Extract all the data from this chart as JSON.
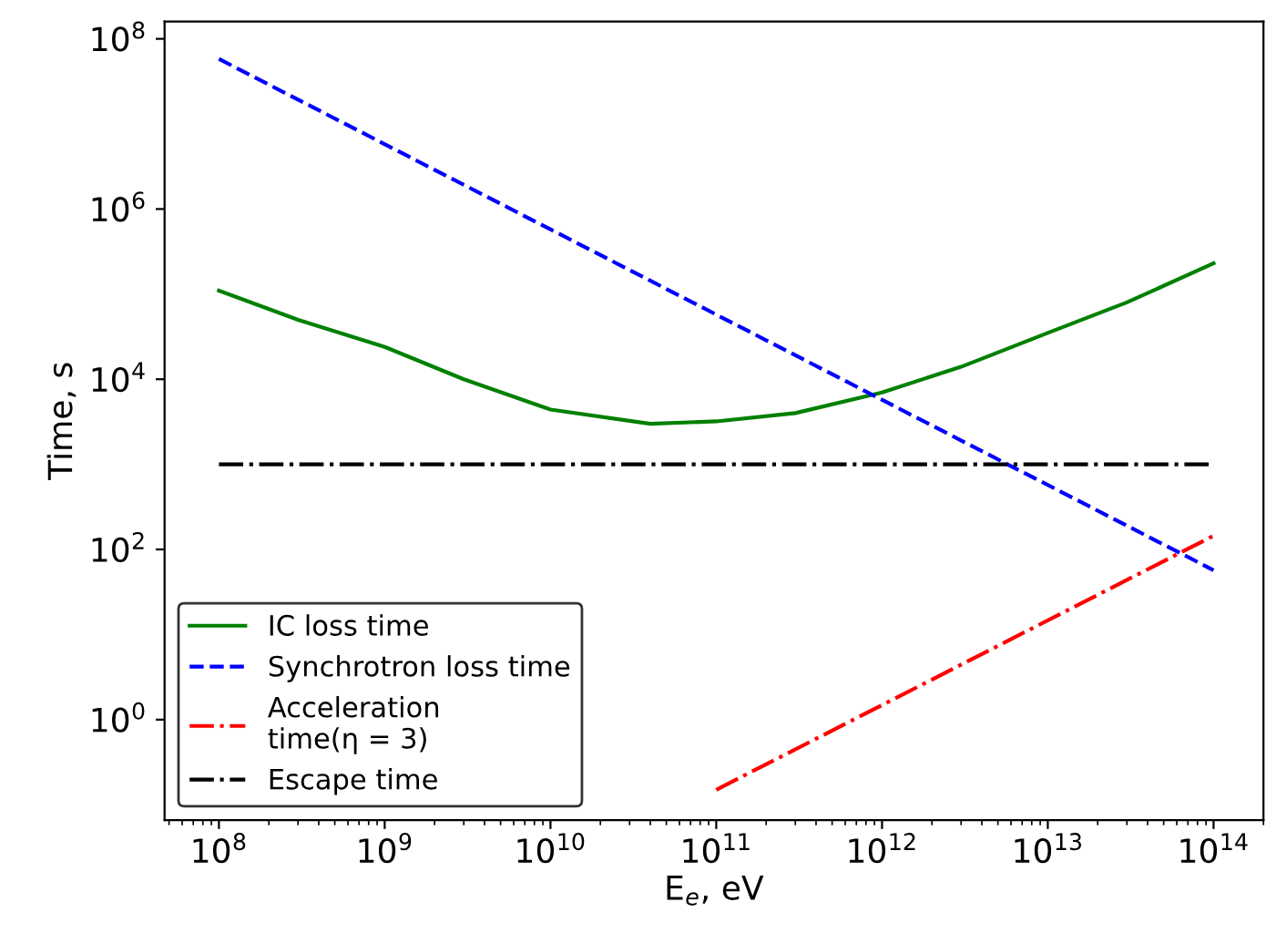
{
  "chart_data": {
    "type": "line",
    "xlabel": "E$_{e}$, eV",
    "ylabel": "Time, s",
    "log": "xy",
    "grid": false,
    "legend": "bottom left",
    "xlim": [
      47000000.0,
      200000000000000.0
    ],
    "ylim": [
      0.066,
      160000000.0
    ],
    "xticks": [
      {
        "value": 100000000.0,
        "label": "10$^{8}$"
      },
      {
        "value": 1000000000.0,
        "label": "10$^{9}$"
      },
      {
        "value": 10000000000.0,
        "label": "10$^{10}$"
      },
      {
        "value": 100000000000.0,
        "label": "10$^{11}$"
      },
      {
        "value": 1000000000000.0,
        "label": "10$^{12}$"
      },
      {
        "value": 10000000000000.0,
        "label": "10$^{13}$"
      },
      {
        "value": 100000000000000.0,
        "label": "10$^{14}$"
      }
    ],
    "yticks": [
      {
        "value": 1,
        "label": "10$^{0}$"
      },
      {
        "value": 100,
        "label": "10$^{2}$"
      },
      {
        "value": 10000.0,
        "label": "10$^{4}$"
      },
      {
        "value": 1000000.0,
        "label": "10$^{6}$"
      },
      {
        "value": 100000000.0,
        "label": "10$^{8}$"
      }
    ],
    "series": [
      {
        "name": "IC loss time",
        "color": "#008000",
        "line_style": "solid",
        "x": [
          100000000.0,
          300000000.0,
          1000000000.0,
          3000000000.0,
          10000000000.0,
          40000000000.0,
          100000000000.0,
          300000000000.0,
          1000000000000.0,
          3000000000000.0,
          10000000000000.0,
          30000000000000.0,
          100000000000000.0
        ],
        "values": [
          110000.0,
          50000.0,
          24000.0,
          10000.0,
          4400.0,
          3000.0,
          3200.0,
          4000.0,
          7000.0,
          14000.0,
          35000.0,
          80000.0,
          230000.0
        ]
      },
      {
        "name": "Synchrotron loss time",
        "color": "#0000ff",
        "line_style": "dashed",
        "x": [
          100000000.0,
          100000000000000.0
        ],
        "values": [
          58000000.0,
          57
        ]
      },
      {
        "name": "Acceleration\ntime(η = 3)",
        "color": "#ff0000",
        "line_style": "dashdot",
        "x": [
          100000000000.0,
          100000000000000.0
        ],
        "values": [
          0.15,
          145
        ]
      },
      {
        "name": "Escape time",
        "color": "#000000",
        "line_style": "dashdot",
        "x": [
          100000000.0,
          100000000000000.0
        ],
        "values": [
          1000,
          1000
        ]
      }
    ]
  }
}
